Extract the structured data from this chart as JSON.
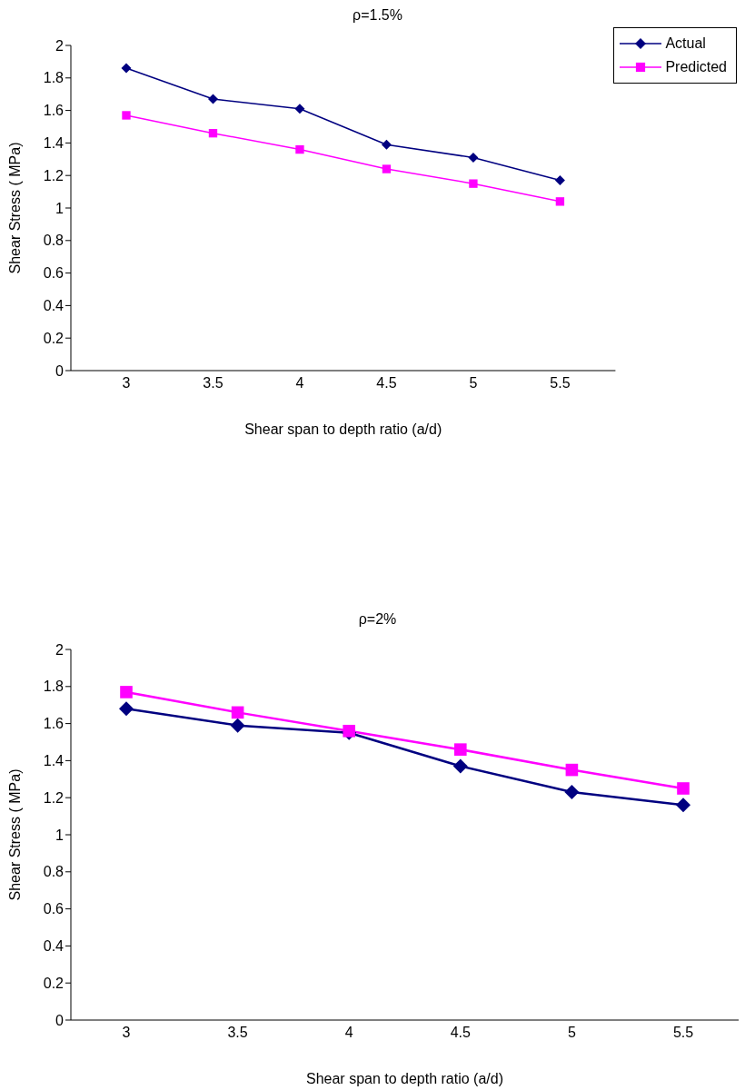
{
  "chart_data": [
    {
      "type": "line",
      "title": "ρ=1.5%",
      "xlabel": "Shear span to depth ratio (a/d)",
      "ylabel": "Shear Stress ( MPa)",
      "categories": [
        "3",
        "3.5",
        "4",
        "4.5",
        "5",
        "5.5"
      ],
      "series": [
        {
          "name": "Actual",
          "color": "#000080",
          "marker": "diamond",
          "values": [
            1.86,
            1.67,
            1.61,
            1.39,
            1.31,
            1.17
          ]
        },
        {
          "name": "Predicted",
          "color": "#ff00ff",
          "marker": "square",
          "values": [
            1.57,
            1.46,
            1.36,
            1.24,
            1.15,
            1.04
          ]
        }
      ],
      "ylim": [
        0,
        2
      ],
      "yticks": [
        0,
        0.2,
        0.4,
        0.6,
        0.8,
        1,
        1.2,
        1.4,
        1.6,
        1.8,
        2
      ],
      "grid": false,
      "legend": "top right",
      "line_style": "solid"
    },
    {
      "type": "line",
      "title": "ρ=2%",
      "xlabel": "Shear span to depth ratio (a/d)",
      "ylabel": "Shear Stress ( MPa)",
      "categories": [
        "3",
        "3.5",
        "4",
        "4.5",
        "5",
        "5.5"
      ],
      "series": [
        {
          "color": "#000080",
          "marker": "diamond",
          "values": [
            1.68,
            1.59,
            1.55,
            1.37,
            1.23,
            1.16
          ]
        },
        {
          "color": "#ff00ff",
          "marker": "square",
          "values": [
            1.77,
            1.66,
            1.56,
            1.46,
            1.35,
            1.25
          ]
        }
      ],
      "ylim": [
        0,
        2
      ],
      "yticks": [
        0,
        0.2,
        0.4,
        0.6,
        0.8,
        1,
        1.2,
        1.4,
        1.6,
        1.8,
        2
      ],
      "grid": false,
      "legend": false,
      "line_style": "solid"
    }
  ]
}
